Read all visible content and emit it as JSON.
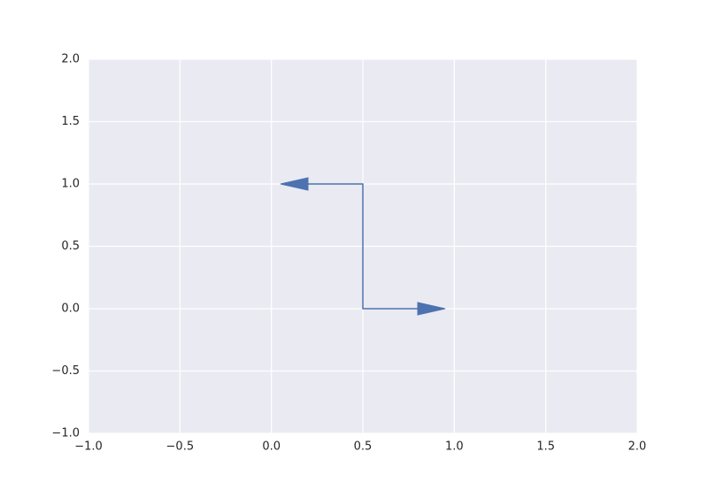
{
  "chart_data": {
    "type": "line",
    "series": [
      {
        "color": "#4c72b0",
        "x": [
          0.05,
          0.5,
          0.5,
          0.95
        ],
        "y": [
          1,
          1,
          0,
          0
        ]
      }
    ],
    "arrow_ends": true,
    "xlim": [
      -1,
      2
    ],
    "ylim": [
      -1,
      2
    ],
    "xticks": [
      {
        "value": -1,
        "label": "−1.0"
      },
      {
        "value": -0.5,
        "label": "−0.5"
      },
      {
        "value": 0,
        "label": "0.0"
      },
      0.5,
      {
        "value": 1,
        "label": "1.0"
      },
      1.5,
      {
        "value": 2,
        "label": "2.0"
      }
    ],
    "yticks": [
      {
        "value": -1,
        "label": "−1.0"
      },
      {
        "value": -0.5,
        "label": "−0.5"
      },
      {
        "value": 0,
        "label": "0.0"
      },
      0.5,
      {
        "value": 1,
        "label": "1.0"
      },
      1.5,
      {
        "value": 2,
        "label": "2.0"
      }
    ],
    "grid": true,
    "background": "#eaeaf2"
  }
}
